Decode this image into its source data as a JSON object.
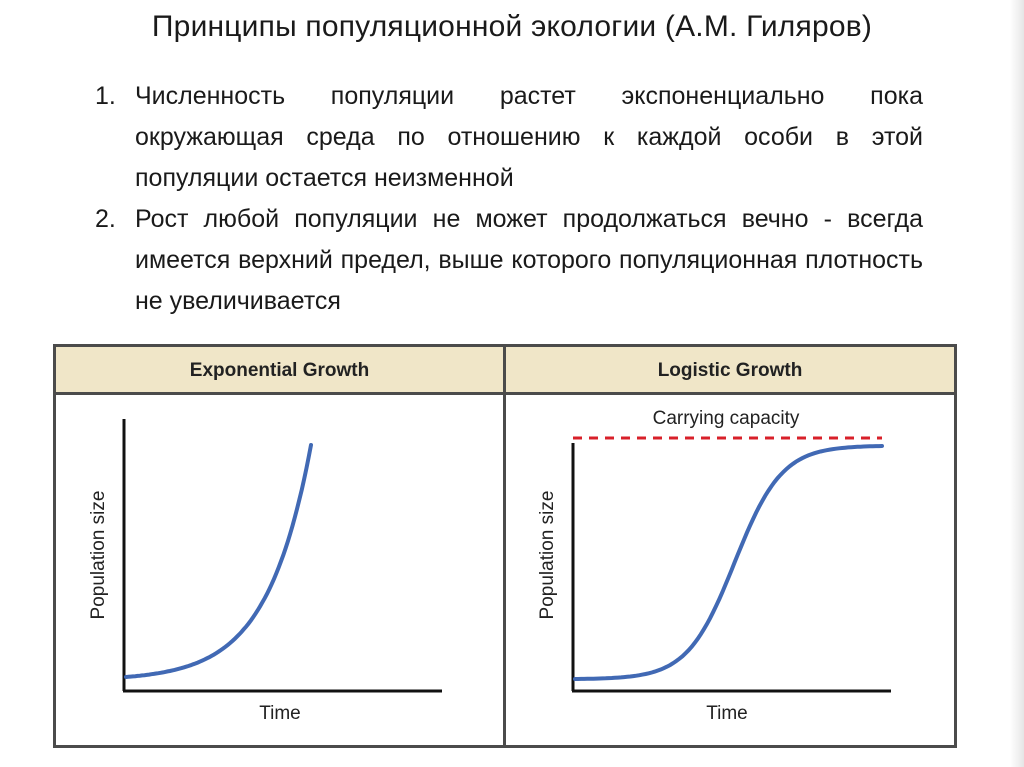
{
  "slide": {
    "title": "Принципы популяционной экологии (А.М. Гиляров)",
    "points": [
      {
        "number": "1.",
        "text": "Численность популяции растет экспоненциально пока окружающая среда по отношению к каждой особи в этой популяции остается неизменной"
      },
      {
        "number": "2.",
        "text": "Рост любой популяции не может продолжаться вечно - всегда имеется верхний предел, выше которого популяционная плотность не увеличивается"
      }
    ]
  },
  "figure": {
    "panels": [
      {
        "title": "Exponential Growth",
        "xlabel": "Time",
        "ylabel": "Population size",
        "curve": "exponential"
      },
      {
        "title": "Logistic Growth",
        "xlabel": "Time",
        "ylabel": "Population size",
        "curve": "logistic",
        "annotation": "Carrying capacity"
      }
    ],
    "colors": {
      "curve": "#4169b4",
      "carrying_capacity_line": "#d8202a",
      "header_background": "#f0e6c8",
      "border": "#4b4b4b"
    }
  }
}
